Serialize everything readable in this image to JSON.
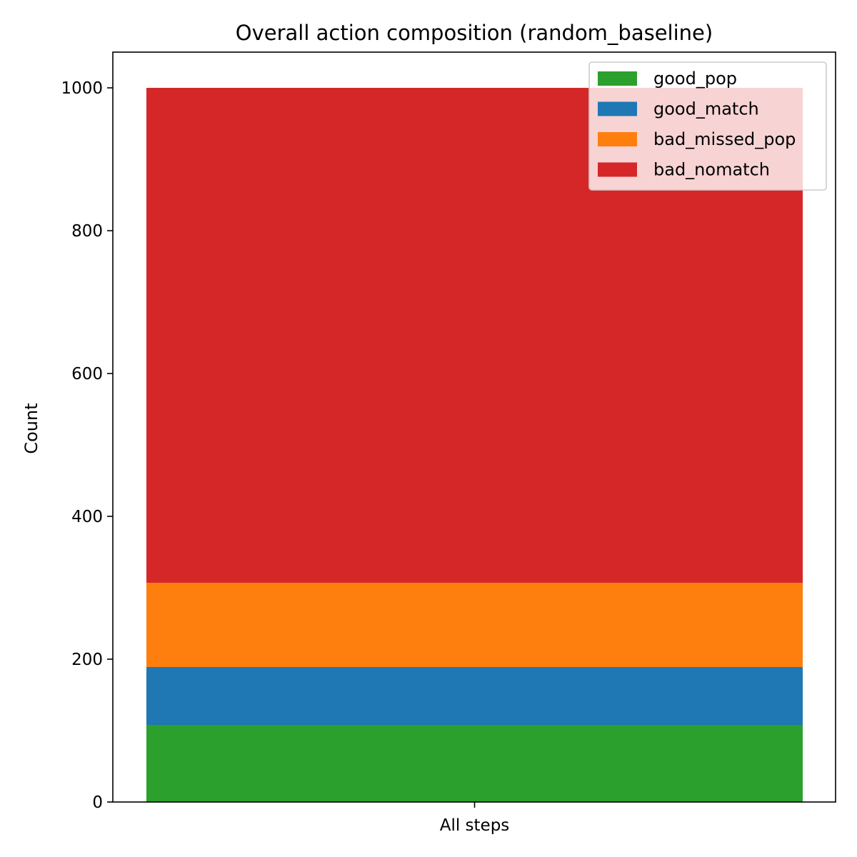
{
  "chart_data": {
    "type": "bar",
    "stacked": true,
    "title": "Overall action composition (random_baseline)",
    "xlabel": "",
    "ylabel": "Count",
    "categories": [
      "All steps"
    ],
    "ylim": [
      0,
      1050
    ],
    "yticks": [
      0,
      200,
      400,
      600,
      800,
      1000
    ],
    "grid": false,
    "legend_position": "top-right",
    "series": [
      {
        "name": "good_pop",
        "values": [
          108
        ],
        "color": "#2ca02c"
      },
      {
        "name": "good_match",
        "values": [
          81
        ],
        "color": "#1f77b4"
      },
      {
        "name": "bad_missed_pop",
        "values": [
          118
        ],
        "color": "#ff7f0e"
      },
      {
        "name": "bad_nomatch",
        "values": [
          693
        ],
        "color": "#d62728"
      }
    ]
  }
}
